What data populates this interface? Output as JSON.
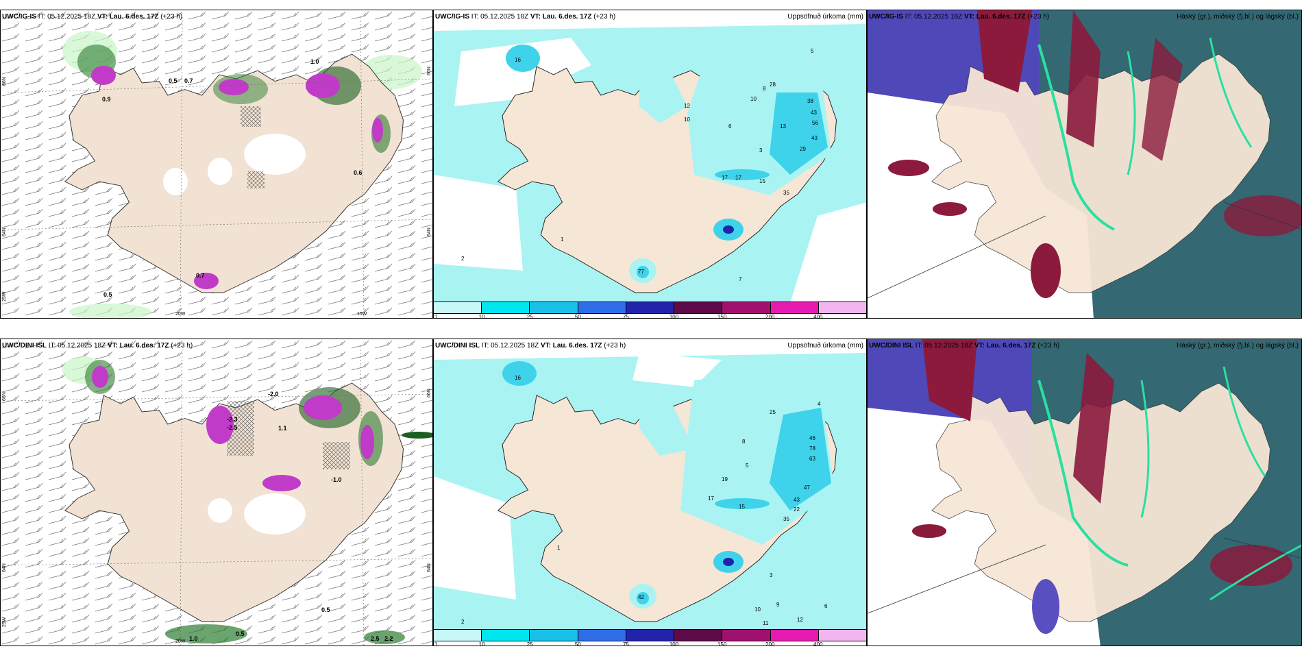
{
  "panels": {
    "row1": {
      "wind": {
        "model": "UWC/IG-IS",
        "it_label": "IT:",
        "it_value": "05.12.2025 18Z",
        "vt_label": "VT:",
        "vt_value": "Lau. 6.des. 17Z",
        "lead": "(+23 h)"
      },
      "precip": {
        "model": "UWC/IG-IS",
        "it_label": "IT:",
        "it_value": "05.12.2025 18Z",
        "vt_label": "VT:",
        "vt_value": "Lau. 6.des. 17Z",
        "lead": "(+23 h)",
        "title_right": "Uppsöfnuð úrkoma (mm)"
      },
      "cloud": {
        "model": "UWC/IG-IS",
        "it_label": "IT:",
        "it_value": "05.12.2025 18Z",
        "vt_label": "VT:",
        "vt_value": "Lau. 6.des. 17Z",
        "lead": "(+23 h)",
        "title_right": "Háský (gr.), miðský (fj.bl.) og lágský (bl.)"
      }
    },
    "row2": {
      "wind": {
        "model": "UWC/DINI ISL",
        "it_label": "IT:",
        "it_value": "05.12.2025 18Z",
        "vt_label": "VT:",
        "vt_value": "Lau. 6.des. 17Z",
        "lead": "(+23 h)"
      },
      "precip": {
        "model": "UWC/DINI ISL",
        "it_label": "IT:",
        "it_value": "05.12.2025 18Z",
        "vt_label": "VT:",
        "vt_value": "Lau. 6.des. 17Z",
        "lead": "(+23 h)",
        "title_right": "Uppsöfnuð úrkoma (mm)"
      },
      "cloud": {
        "model": "UWC/DINI ISL",
        "it_label": "IT:",
        "it_value": "05.12.2025 18Z",
        "vt_label": "VT:",
        "vt_value": "Lau. 6.des. 17Z",
        "lead": "(+23 h)",
        "title_right": "Háský (gr.), miðský (fj.bl.) og lágský (bl.)"
      }
    }
  },
  "axes": {
    "lat_66": "66N",
    "lat_64": "64N",
    "lon_25": "25W",
    "lon_20": "20W",
    "lon_15": "15W"
  },
  "colorbar": {
    "ticks": [
      "1",
      "10",
      "25",
      "50",
      "75",
      "100",
      "150",
      "200",
      "400"
    ],
    "colors": [
      "#c8f7f7",
      "#00e5f0",
      "#19c1e6",
      "#2f6ee6",
      "#2222aa",
      "#5c0a48",
      "#a0106f",
      "#e61ab0",
      "#f2b5f0"
    ]
  },
  "colors": {
    "land": "#f6e6d6",
    "sea": "#ffffff",
    "precip_light": "#aaf3f3",
    "precip_mid": "#3ed3ea",
    "cloud_high": "#8b1a3c",
    "cloud_mid": "#5a4fc0",
    "cloud_low": "#2f6f66"
  },
  "row1_precip_labels": [
    "16",
    "38",
    "28",
    "43",
    "56",
    "43",
    "29",
    "17",
    "17",
    "15",
    "35",
    "13",
    "77",
    "12",
    "10",
    "10",
    "8",
    "6",
    "5",
    "3",
    "2",
    "1",
    "7"
  ],
  "row2_precip_labels": [
    "16",
    "25",
    "46",
    "78",
    "63",
    "47",
    "43",
    "35",
    "22",
    "19",
    "15",
    "17",
    "42",
    "10",
    "11",
    "12",
    "9",
    "8",
    "6",
    "5",
    "4",
    "3",
    "2",
    "1"
  ],
  "row1_wind_labels": [
    "0.5",
    "0.7",
    "0.9",
    "1.0",
    "0.6",
    "0.5",
    "0.7"
  ],
  "row2_wind_labels": [
    "-2.0",
    "-2.3",
    "-2.5",
    "1.1",
    "-1.0",
    "0.5",
    "0.5",
    "1.0",
    "2.5",
    "2.2"
  ]
}
